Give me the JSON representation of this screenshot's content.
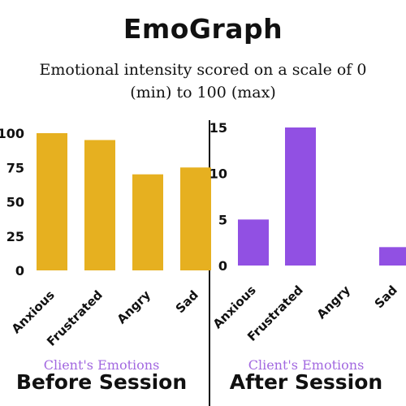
{
  "header": {
    "title": "EmoGraph",
    "subtitle": "Emotional intensity scored on a scale of 0 (min) to 100 (max)"
  },
  "colors": {
    "before": "#e6b020",
    "after": "#9150e3",
    "caption": "#a268e0",
    "divider": "#111111"
  },
  "chart_data": [
    {
      "type": "bar",
      "categories": [
        "Anxious",
        "Frustrated",
        "Angry",
        "Sad"
      ],
      "values": [
        100,
        95,
        70,
        75
      ],
      "ylim": [
        0,
        100
      ],
      "yticks": [
        0,
        25,
        50,
        75,
        100
      ],
      "caption_line1": "Client's Emotions",
      "caption_line2": "Before Session",
      "grid": false
    },
    {
      "type": "bar",
      "categories": [
        "Anxious",
        "Frustrated",
        "Angry",
        "Sad"
      ],
      "values": [
        5,
        15,
        0,
        2
      ],
      "ylim": [
        0,
        15
      ],
      "yticks": [
        0,
        5,
        10,
        15
      ],
      "caption_line1": "Client's Emotions",
      "caption_line2": "After Session",
      "grid": false
    }
  ]
}
